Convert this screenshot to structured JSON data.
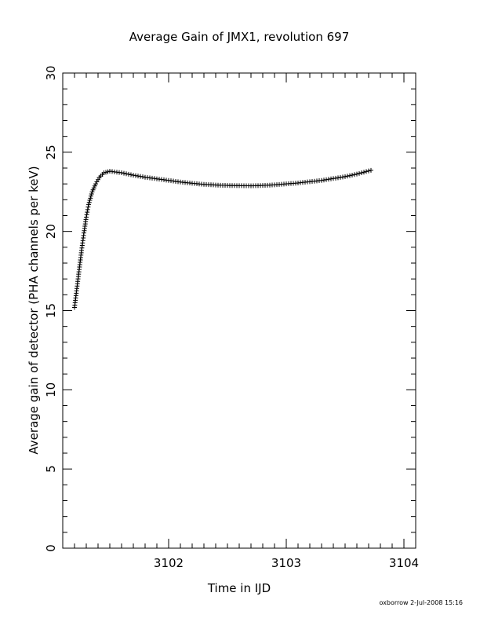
{
  "chart_data": {
    "type": "scatter",
    "title": "Average Gain of JMX1, revolution 697",
    "xlabel": "Time in IJD",
    "ylabel": "Average gain of detector (PHA channels per keV)",
    "xlim": [
      3101.1,
      3104.1
    ],
    "ylim": [
      0,
      30
    ],
    "x_ticks": [
      3102,
      3103,
      3104
    ],
    "y_ticks": [
      0,
      5,
      10,
      15,
      20,
      25,
      30
    ],
    "x_tick_labels": [
      "3102",
      "3103",
      "3104"
    ],
    "y_tick_labels": [
      "0",
      "5",
      "10",
      "15",
      "20",
      "25",
      "30"
    ],
    "grid": false,
    "marker": "+",
    "series": [
      {
        "points": [
          [
            3101.2,
            15.2
          ],
          [
            3101.22,
            16.4
          ],
          [
            3101.24,
            17.6
          ],
          [
            3101.26,
            18.8
          ],
          [
            3101.28,
            19.9
          ],
          [
            3101.3,
            20.9
          ],
          [
            3101.32,
            21.7
          ],
          [
            3101.35,
            22.5
          ],
          [
            3101.38,
            23.0
          ],
          [
            3101.41,
            23.4
          ],
          [
            3101.45,
            23.7
          ],
          [
            3101.5,
            23.8
          ],
          [
            3101.6,
            23.7
          ],
          [
            3101.7,
            23.55
          ],
          [
            3101.8,
            23.42
          ],
          [
            3101.9,
            23.32
          ],
          [
            3102.0,
            23.22
          ],
          [
            3102.1,
            23.12
          ],
          [
            3102.2,
            23.04
          ],
          [
            3102.3,
            22.97
          ],
          [
            3102.4,
            22.93
          ],
          [
            3102.5,
            22.9
          ],
          [
            3102.6,
            22.89
          ],
          [
            3102.7,
            22.88
          ],
          [
            3102.8,
            22.9
          ],
          [
            3102.9,
            22.94
          ],
          [
            3103.0,
            23.0
          ],
          [
            3103.1,
            23.06
          ],
          [
            3103.2,
            23.14
          ],
          [
            3103.3,
            23.22
          ],
          [
            3103.4,
            23.34
          ],
          [
            3103.5,
            23.46
          ],
          [
            3103.6,
            23.62
          ],
          [
            3103.7,
            23.82
          ],
          [
            3103.72,
            23.86
          ]
        ]
      }
    ]
  },
  "footer": "oxborrow   2-Jul-2008 15:16"
}
